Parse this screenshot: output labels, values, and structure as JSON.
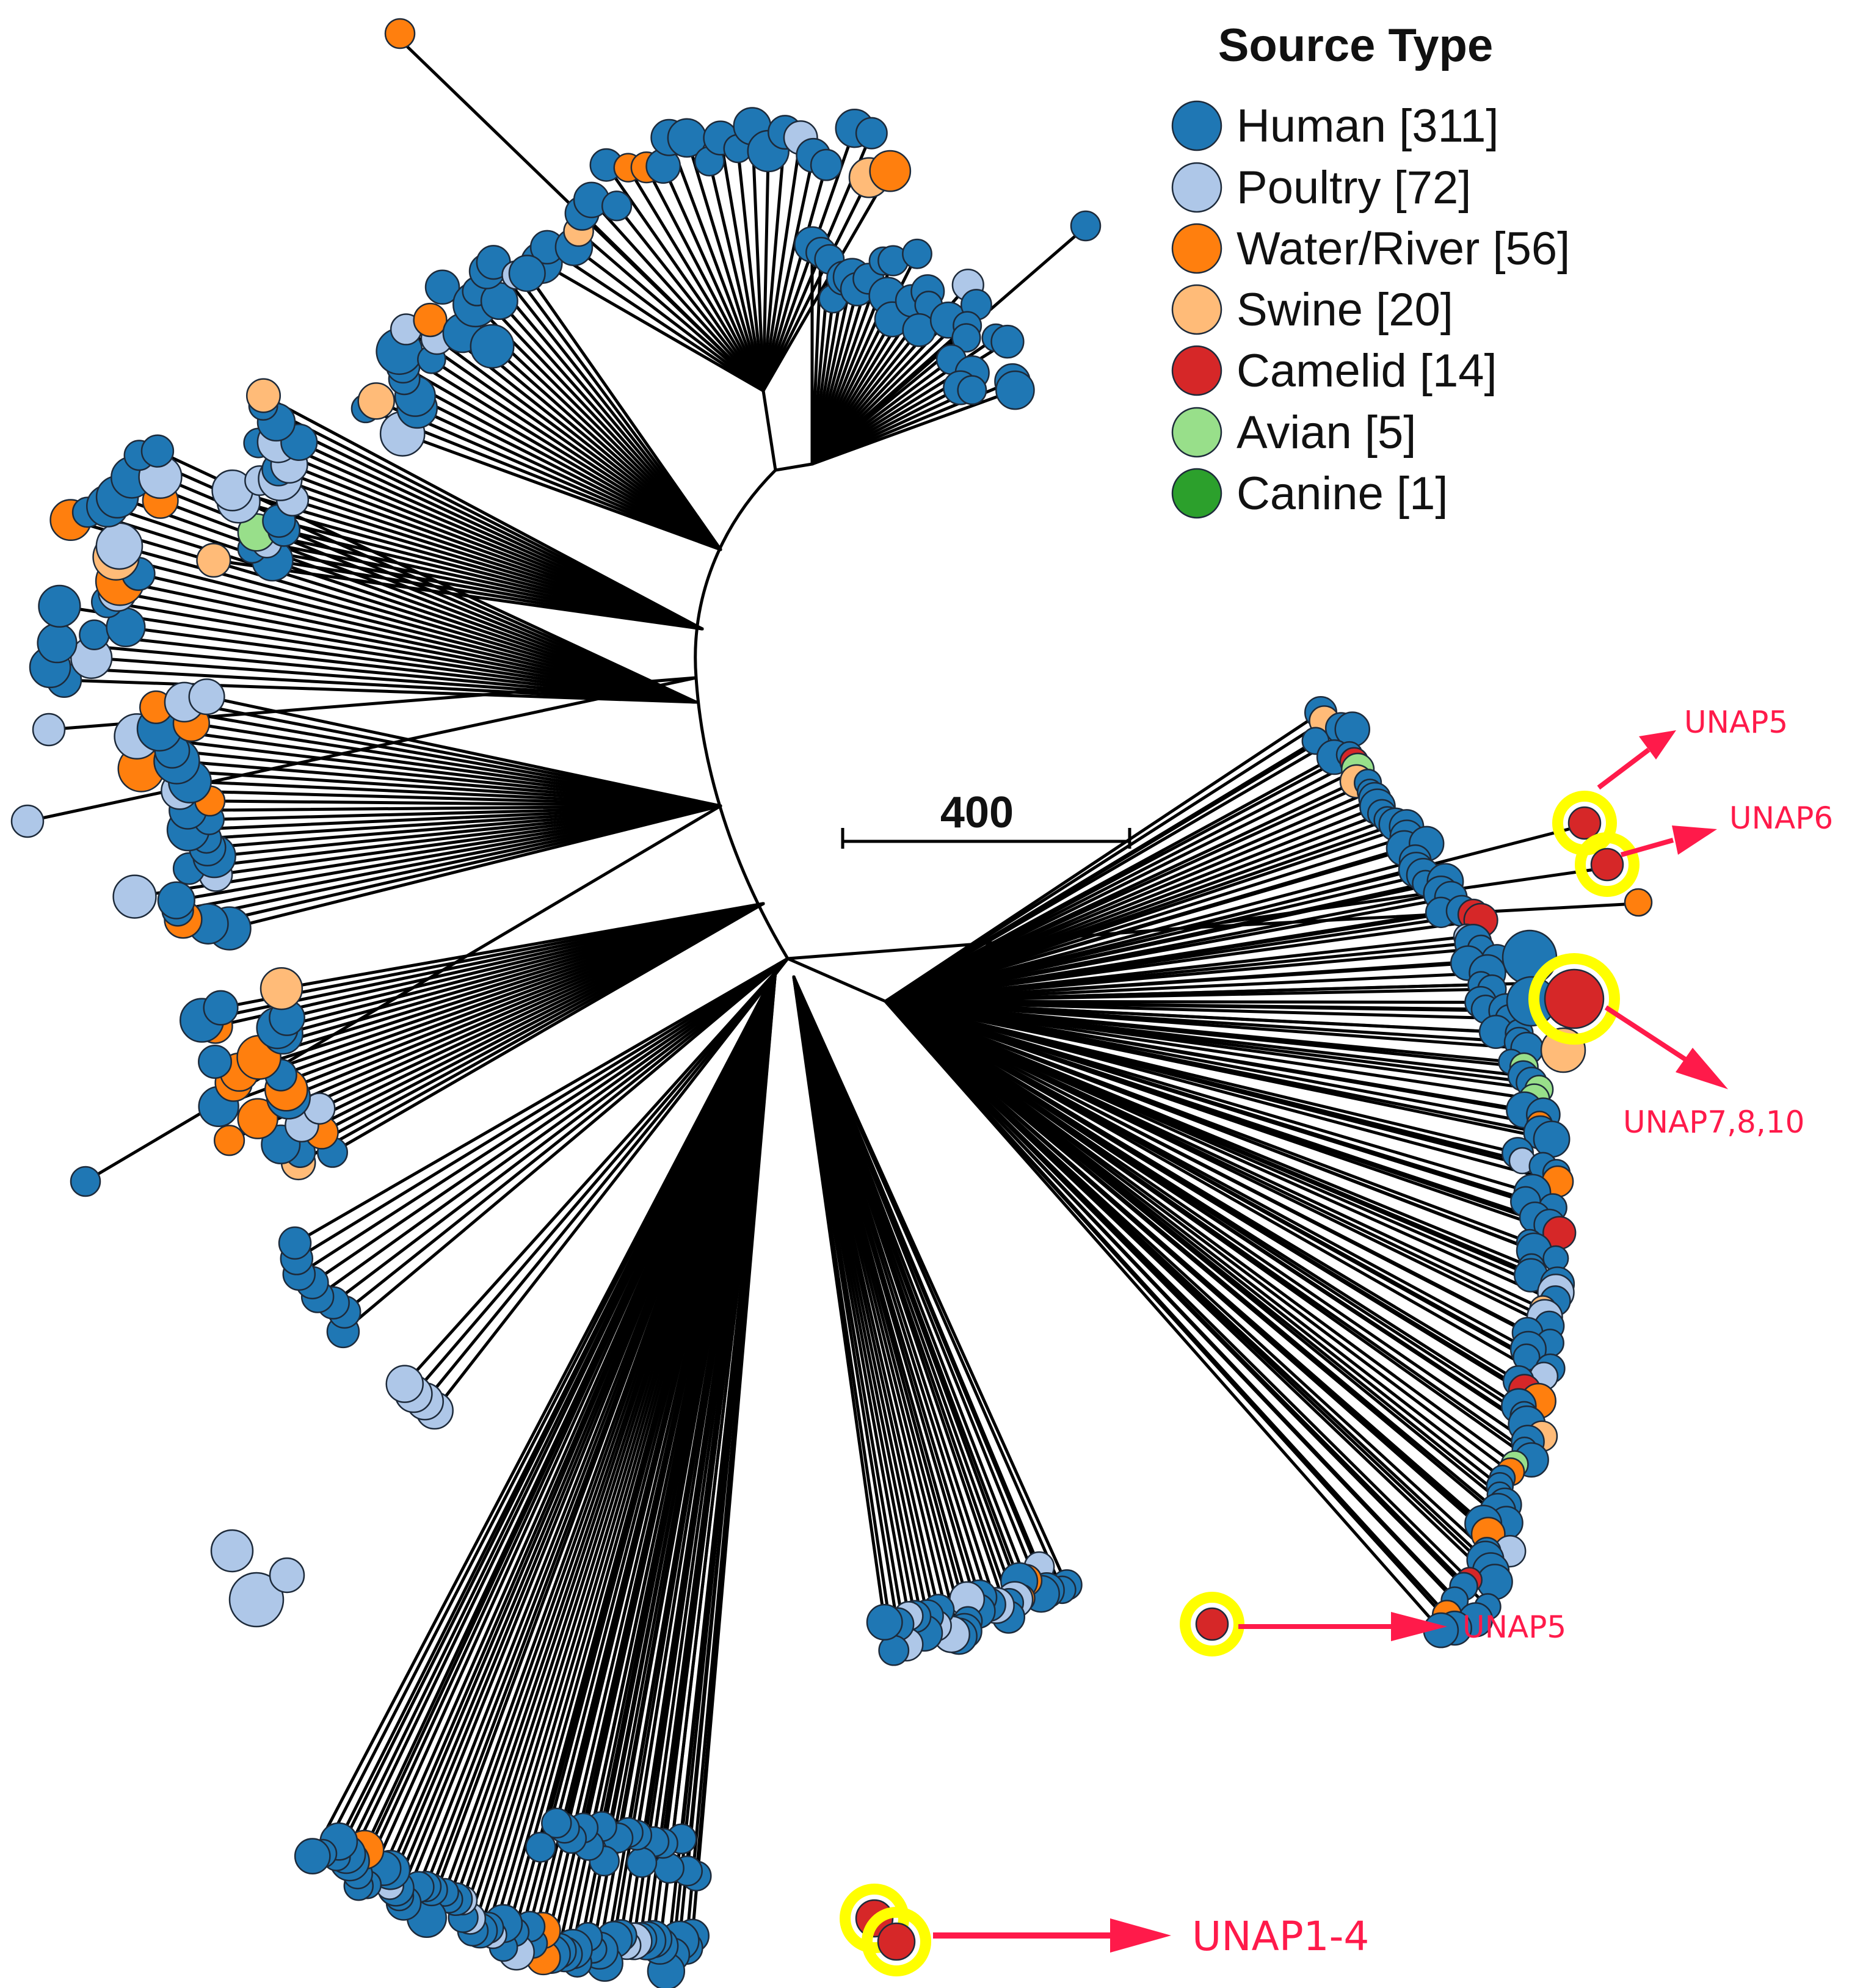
{
  "legend": {
    "title": "Source Type",
    "items": [
      {
        "label": "Human [311]",
        "color": "#1f77b4"
      },
      {
        "label": "Poultry [72]",
        "color": "#aec7e8"
      },
      {
        "label": "Water/River [56]",
        "color": "#ff7f0e"
      },
      {
        "label": "Swine [20]",
        "color": "#ffbb78"
      },
      {
        "label": "Camelid [14]",
        "color": "#d62728"
      },
      {
        "label": "Avian [5]",
        "color": "#98df8a"
      },
      {
        "label": "Canine [1]",
        "color": "#2ca02c"
      }
    ]
  },
  "scale_bar": {
    "label": "400"
  },
  "callouts": [
    {
      "label": "UNAP5"
    },
    {
      "label": "UNAP6"
    },
    {
      "label": "UNAP7,8,10"
    },
    {
      "label": "UNAP5"
    },
    {
      "label": "UNAP1-4"
    }
  ],
  "colors": {
    "branch": "#000000",
    "highlight_ring": "#ffff00",
    "callout_arrow": "#ff1a4a"
  }
}
